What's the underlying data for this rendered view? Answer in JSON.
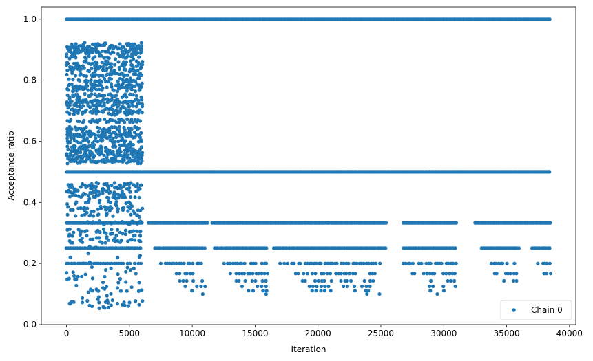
{
  "chart_data": {
    "type": "scatter",
    "xlabel": "Iteration",
    "ylabel": "Acceptance ratio",
    "xlim": [
      -2000,
      40500
    ],
    "ylim": [
      0.0,
      1.04
    ],
    "xticks": [
      0,
      5000,
      10000,
      15000,
      20000,
      25000,
      30000,
      35000,
      40000
    ],
    "yticks": [
      0.0,
      0.2,
      0.4,
      0.6,
      0.8,
      1.0
    ],
    "xtick_labels": [
      "0",
      "5000",
      "10000",
      "15000",
      "20000",
      "25000",
      "30000",
      "35000",
      "40000"
    ],
    "ytick_labels": [
      "0.0",
      "0.2",
      "0.4",
      "0.6",
      "0.8",
      "1.0"
    ],
    "legend": {
      "placement": "lower-right",
      "entries": [
        "Chain 0"
      ]
    },
    "grid": false,
    "color": "#1f77b4",
    "series": [
      {
        "name": "Chain 0",
        "bands": [
          {
            "y": 1.0,
            "segments": [
              [
                0,
                38500
              ]
            ],
            "density": 1.0
          },
          {
            "y": 0.5,
            "segments": [
              [
                0,
                38500
              ]
            ],
            "density": 1.0
          },
          {
            "y": 0.333,
            "segments": [
              [
                0,
                6000
              ],
              [
                6500,
                11200
              ],
              [
                11600,
                25400
              ],
              [
                26800,
                31000
              ],
              [
                32500,
                38500
              ]
            ],
            "density": 0.9
          },
          {
            "y": 0.25,
            "segments": [
              [
                0,
                6000
              ],
              [
                7000,
                11000
              ],
              [
                11800,
                16000
              ],
              [
                16500,
                25400
              ],
              [
                26800,
                31000
              ],
              [
                33000,
                36000
              ],
              [
                37000,
                38500
              ]
            ],
            "density": 0.7
          },
          {
            "y": 0.2,
            "segments": [
              [
                0,
                6000
              ],
              [
                7500,
                11000
              ],
              [
                12500,
                16000
              ],
              [
                17000,
                25000
              ],
              [
                26800,
                31000
              ],
              [
                33800,
                35800
              ],
              [
                37500,
                38500
              ]
            ],
            "density": 0.5
          },
          {
            "y": 0.167,
            "segments": [
              [
                8500,
                11000
              ],
              [
                12800,
                16000
              ],
              [
                18000,
                25000
              ],
              [
                27500,
                31000
              ],
              [
                34000,
                35800
              ],
              [
                38000,
                38500
              ]
            ],
            "density": 0.4
          },
          {
            "y": 0.143,
            "segments": [
              [
                9000,
                11000
              ],
              [
                13500,
                16000
              ],
              [
                18500,
                24500
              ],
              [
                28000,
                31000
              ],
              [
                34500,
                35800
              ]
            ],
            "density": 0.35
          },
          {
            "y": 0.125,
            "segments": [
              [
                9500,
                11000
              ],
              [
                14000,
                16000
              ],
              [
                19000,
                24500
              ],
              [
                28500,
                31000
              ]
            ],
            "density": 0.3
          },
          {
            "y": 0.111,
            "segments": [
              [
                10000,
                11000
              ],
              [
                14500,
                16000
              ],
              [
                19500,
                21000
              ],
              [
                23000,
                25000
              ],
              [
                29000,
                31000
              ]
            ],
            "density": 0.25
          },
          {
            "y": 0.1,
            "segments": [
              [
                10000,
                11000
              ],
              [
                14500,
                16000
              ],
              [
                20000,
                21000
              ],
              [
                23500,
                25000
              ],
              [
                29500,
                31000
              ]
            ],
            "density": 0.2
          }
        ],
        "early_levels": [
          0.917,
          0.909,
          0.9,
          0.889,
          0.875,
          0.857,
          0.846,
          0.833,
          0.818,
          0.8,
          0.786,
          0.778,
          0.769,
          0.75,
          0.733,
          0.727,
          0.714,
          0.7,
          0.692,
          0.667,
          0.643,
          0.636,
          0.625,
          0.615,
          0.6,
          0.583,
          0.571,
          0.563,
          0.556,
          0.545,
          0.538,
          0.533,
          0.462,
          0.455,
          0.444,
          0.438,
          0.429,
          0.417,
          0.4,
          0.385,
          0.375,
          0.364,
          0.357,
          0.333,
          0.308,
          0.3,
          0.286,
          0.273,
          0.25,
          0.231,
          0.222,
          0.2,
          0.182,
          0.167,
          0.154,
          0.143,
          0.125,
          0.111,
          0.1,
          0.091,
          0.083,
          0.077,
          0.071,
          0.067,
          0.059
        ],
        "early_range": [
          0,
          6000
        ]
      }
    ]
  }
}
